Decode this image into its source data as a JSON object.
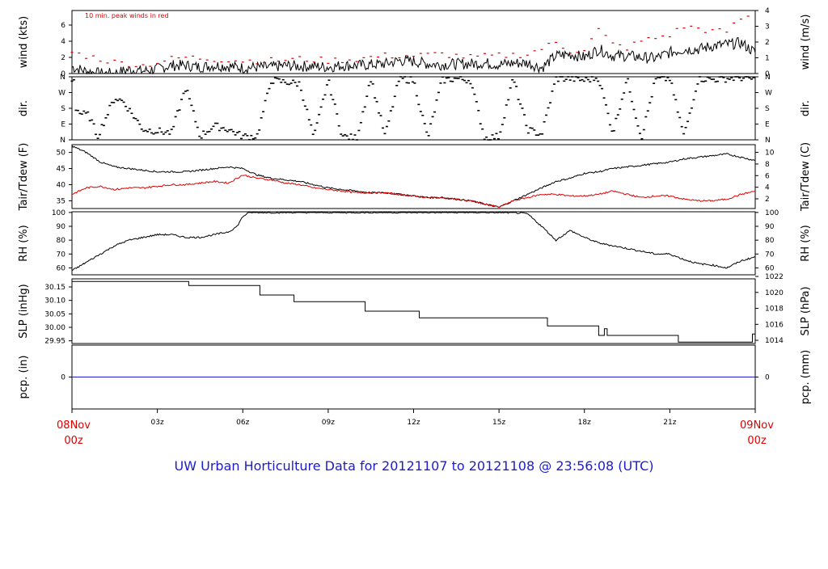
{
  "title": "UW Urban Horticulture Data for 20121107  to  20121108 @ 23:56:08  (UTC)",
  "annotation": "10 min. peak winds in red",
  "colors": {
    "primary": "#000000",
    "peak": "#dd0000",
    "dewpoint": "#dd0000",
    "precip": "#1c1ccc",
    "title": "#1c1ccc",
    "xend": "#e00000"
  },
  "x_axis": {
    "ticks": [
      {
        "hour": 0,
        "label": ""
      },
      {
        "hour": 3,
        "label": "03z"
      },
      {
        "hour": 6,
        "label": "06z"
      },
      {
        "hour": 9,
        "label": "09z"
      },
      {
        "hour": 12,
        "label": "12z"
      },
      {
        "hour": 15,
        "label": "15z"
      },
      {
        "hour": 18,
        "label": "18z"
      },
      {
        "hour": 21,
        "label": "21z"
      },
      {
        "hour": 24,
        "label": ""
      }
    ],
    "start_label": [
      "08Nov",
      "00z"
    ],
    "end_label": [
      "09Nov",
      "00z"
    ]
  },
  "chart_data": [
    {
      "panel": "wind",
      "type": "line",
      "ylabel": "wind (kts)",
      "ylabel_right": "wind (m/s)",
      "ylim": [
        0,
        7.8
      ],
      "yticks": [
        0,
        2,
        4,
        6
      ],
      "ylim_right": [
        0,
        4
      ],
      "yticks_right": [
        0,
        1,
        2,
        3,
        4
      ],
      "series": [
        {
          "name": "wind",
          "hours": [
            0,
            0.5,
            1,
            1.5,
            2,
            2.5,
            3,
            3.5,
            4,
            4.5,
            5,
            5.5,
            6,
            6.5,
            7,
            7.5,
            8,
            8.5,
            9,
            9.5,
            10,
            10.5,
            11,
            11.5,
            12,
            12.5,
            13,
            13.5,
            14,
            14.5,
            15,
            15.5,
            16,
            16.5,
            17,
            17.5,
            18,
            18.5,
            19,
            19.5,
            20,
            20.5,
            21,
            21.5,
            22,
            22.5,
            23,
            23.5,
            24
          ],
          "values": [
            0.8,
            0.3,
            0,
            0,
            0.5,
            0.3,
            0.6,
            1.0,
            1.0,
            0.8,
            1.0,
            0.9,
            0.7,
            0.8,
            0.8,
            1.0,
            0.9,
            0.9,
            0.8,
            1.0,
            1.0,
            1.1,
            1.2,
            1.6,
            1.5,
            1.2,
            1.1,
            1.2,
            1.2,
            1.3,
            1.1,
            1.3,
            1.3,
            0.7,
            2.2,
            2.4,
            2.0,
            3.0,
            2.2,
            2.2,
            2.0,
            1.9,
            2.6,
            3.0,
            3.0,
            3.4,
            3.6,
            3.8,
            2.6
          ]
        },
        {
          "name": "10 min. peak winds in red",
          "hours": [
            0,
            1,
            1.5,
            2,
            2.5,
            3,
            3.5,
            4,
            5,
            6,
            7,
            8,
            9,
            10,
            11,
            12,
            13,
            14,
            15,
            16,
            17,
            17.5,
            18,
            18.5,
            19,
            19.5,
            20,
            20.5,
            21,
            21.5,
            22,
            22.5,
            23,
            23.5,
            24
          ],
          "values": [
            2.6,
            1.8,
            1.4,
            1.2,
            1.0,
            1.4,
            1.8,
            2.0,
            1.8,
            1.6,
            1.6,
            1.8,
            1.6,
            1.8,
            2.2,
            2.2,
            2.4,
            2.0,
            2.2,
            2.4,
            3.8,
            2.8,
            3.0,
            5.4,
            3.6,
            3.2,
            4.0,
            4.4,
            4.8,
            5.8,
            5.6,
            5.2,
            5.2,
            6.8,
            7.2
          ]
        }
      ]
    },
    {
      "panel": "dir",
      "type": "scatter",
      "ylabel": "dir.",
      "ylabel_right": "dir.",
      "ylim": [
        0,
        360
      ],
      "yticks": [
        0,
        90,
        180,
        270,
        360
      ],
      "ytick_labels": [
        "N",
        "E",
        "S",
        "W",
        "N"
      ],
      "series": [
        {
          "name": "direction",
          "hours": [
            0.1,
            0.3,
            0.6,
            0.9,
            1.5,
            1.8,
            2.5,
            3.0,
            3.5,
            4.0,
            4.5,
            5.0,
            5.5,
            6.0,
            6.5,
            7.0,
            7.5,
            8.0,
            8.5,
            9.0,
            9.5,
            10.0,
            10.5,
            11.0,
            11.5,
            12.0,
            12.5,
            13.0,
            13.5,
            14.0,
            14.5,
            15.0,
            15.5,
            16.0,
            16.5,
            17.0,
            17.5,
            18.0,
            18.5,
            19.0,
            19.5,
            20.0,
            20.5,
            21.0,
            21.5,
            22.0,
            22.5,
            23.0,
            23.5,
            24.0
          ],
          "values": [
            190,
            150,
            140,
            20,
            240,
            220,
            60,
            50,
            40,
            300,
            20,
            80,
            60,
            20,
            20,
            340,
            330,
            320,
            10,
            340,
            20,
            10,
            350,
            20,
            350,
            340,
            10,
            340,
            350,
            340,
            10,
            20,
            350,
            60,
            30,
            350,
            350,
            340,
            355,
            40,
            350,
            10,
            345,
            350,
            20,
            350,
            345,
            350,
            355,
            345
          ]
        }
      ]
    },
    {
      "panel": "temp",
      "type": "line",
      "ylabel": "Tair/Tdew (F)",
      "ylabel_right": "Tair/Tdew (C)",
      "ylim": [
        32.6,
        52.4
      ],
      "yticks": [
        35,
        40,
        45,
        50
      ],
      "ylim_right": [
        0.33,
        11.33
      ],
      "yticks_right": [
        2,
        4,
        6,
        8,
        10
      ],
      "series": [
        {
          "name": "Tair",
          "hours": [
            0,
            0.5,
            1,
            1.5,
            2,
            2.5,
            3,
            3.5,
            4,
            4.5,
            5,
            5.5,
            6,
            6.5,
            7,
            7.5,
            8,
            8.5,
            9,
            9.5,
            10,
            10.5,
            11,
            11.5,
            12,
            12.5,
            13,
            13.5,
            14,
            14.5,
            15,
            15.5,
            16,
            16.5,
            17,
            17.5,
            18,
            18.5,
            19,
            19.5,
            20,
            20.5,
            21,
            21.5,
            22,
            22.5,
            23,
            23.5,
            24
          ],
          "values": [
            52,
            50,
            47,
            45.5,
            45,
            44.5,
            44,
            44,
            44,
            44.5,
            45,
            45.5,
            45,
            43,
            42,
            41.5,
            41,
            40,
            39,
            38.5,
            38,
            37.5,
            37.5,
            37,
            36.5,
            36,
            36,
            35.5,
            35,
            34,
            33,
            35,
            37,
            39,
            41,
            42,
            43.5,
            44,
            45,
            45.5,
            46,
            46.5,
            47,
            48,
            48.5,
            49,
            49.5,
            48.5,
            47.5
          ]
        },
        {
          "name": "Tdew",
          "hours": [
            0,
            0.5,
            1,
            1.5,
            2,
            2.5,
            3,
            3.5,
            4,
            4.5,
            5,
            5.5,
            6,
            6.5,
            7,
            7.5,
            8,
            8.5,
            9,
            9.5,
            10,
            10.5,
            11,
            11.5,
            12,
            12.5,
            13,
            13.5,
            14,
            14.5,
            15,
            15.5,
            16,
            16.5,
            17,
            17.5,
            18,
            18.5,
            19,
            19.5,
            20,
            20.5,
            21,
            21.5,
            22,
            22.5,
            23,
            23.5,
            24
          ],
          "values": [
            37,
            39,
            39.5,
            38.5,
            39,
            39,
            39.5,
            40,
            40,
            40.5,
            41,
            40.5,
            43,
            42,
            41.5,
            40.5,
            40,
            39,
            38.5,
            38,
            37.5,
            37.5,
            37.5,
            37,
            36.5,
            36,
            36,
            35.5,
            35,
            34,
            33,
            35,
            36,
            37,
            37,
            36.5,
            36.5,
            37,
            38,
            37,
            36,
            36.5,
            36.5,
            35.5,
            35,
            35,
            35.5,
            37,
            38
          ]
        }
      ]
    },
    {
      "panel": "rh",
      "type": "line",
      "ylabel": "RH (%)",
      "ylabel_right": "RH (%)",
      "ylim": [
        55,
        100.5
      ],
      "yticks": [
        60,
        70,
        80,
        90,
        100
      ],
      "series": [
        {
          "name": "RH",
          "hours": [
            0,
            0.5,
            1,
            1.5,
            2,
            2.5,
            3,
            3.5,
            4,
            4.5,
            5,
            5.5,
            5.8,
            6.0,
            6.2,
            6.5,
            7,
            8,
            9,
            10,
            11,
            12,
            13,
            14,
            15,
            15.5,
            16,
            16.5,
            17,
            17.5,
            18,
            18.5,
            19,
            19.5,
            20,
            20.5,
            21,
            21.5,
            22,
            22.5,
            23,
            23.5,
            24
          ],
          "values": [
            58,
            64,
            70,
            76,
            80,
            82,
            84,
            84,
            82,
            82,
            84,
            86,
            90,
            97,
            100,
            100,
            100,
            100,
            100,
            100,
            100,
            100,
            100,
            100,
            100,
            100,
            99,
            90,
            80,
            87,
            82,
            78,
            76,
            74,
            72,
            70,
            70,
            66,
            63,
            62,
            60,
            65,
            68
          ]
        }
      ]
    },
    {
      "panel": "slp",
      "type": "line",
      "ylabel": "SLP (inHg)",
      "ylabel_right": "SLP (hPa)",
      "ylim": [
        29.94,
        30.18
      ],
      "yticks": [
        29.95,
        30.0,
        30.05,
        30.1,
        30.15
      ],
      "ylim_right": [
        1013.6,
        1021.7
      ],
      "yticks_right": [
        1014,
        1016,
        1018,
        1020,
        1022
      ],
      "series": [
        {
          "name": "SLP",
          "hours": [
            0,
            4.1,
            4.1,
            6.6,
            6.6,
            7.8,
            7.8,
            10.3,
            10.3,
            12.2,
            12.2,
            16.7,
            16.7,
            18.5,
            18.5,
            18.7,
            18.7,
            18.8,
            18.8,
            21.3,
            21.3,
            23.9,
            23.9,
            24
          ],
          "values": [
            30.17,
            30.17,
            30.155,
            30.155,
            30.12,
            30.12,
            30.095,
            30.095,
            30.06,
            30.06,
            30.035,
            30.035,
            30.005,
            30.005,
            29.97,
            29.97,
            29.995,
            29.995,
            29.97,
            29.97,
            29.945,
            29.945,
            29.975,
            29.975
          ]
        }
      ]
    },
    {
      "panel": "pcp",
      "type": "line",
      "ylabel": "pcp. (in)",
      "ylabel_right": "pcp. (mm)",
      "ylim": [
        -1,
        1
      ],
      "yticks": [
        0
      ],
      "yticks_right": [
        0
      ],
      "series": [
        {
          "name": "precip",
          "hours": [
            0,
            24
          ],
          "values": [
            0,
            0
          ]
        }
      ]
    }
  ]
}
